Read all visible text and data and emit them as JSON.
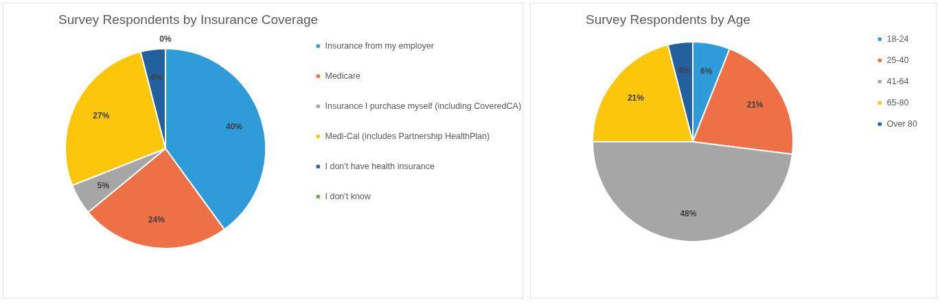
{
  "chart_data": [
    {
      "type": "pie",
      "title": "Survey Respondents by Insurance Coverage",
      "categories": [
        "Insurance from my employer",
        "Medicare",
        "Insurance I purchase myself (including CoveredCA)",
        "Medi-Cal (includes Partnership HealthPlan)",
        "I don't have health insurance",
        "I don't know"
      ],
      "values": [
        40,
        24,
        5,
        27,
        4,
        0
      ],
      "colors": [
        "#2f9bd9",
        "#ee7046",
        "#a6a6a6",
        "#fcc70a",
        "#22609e",
        "#6aa84f"
      ],
      "value_labels": [
        "40%",
        "24%",
        "5%",
        "27%",
        "4%",
        "0%"
      ],
      "legend": "right"
    },
    {
      "type": "pie",
      "title": "Survey Respondents by Age",
      "categories": [
        "18-24",
        "25-40",
        "41-64",
        "65-80",
        "Over 80"
      ],
      "values": [
        6,
        21,
        48,
        21,
        4
      ],
      "colors": [
        "#2f9bd9",
        "#ee7046",
        "#a6a6a6",
        "#fcc70a",
        "#22609e"
      ],
      "value_labels": [
        "6%",
        "21%",
        "48%",
        "21%",
        "4%"
      ],
      "legend": "right"
    }
  ]
}
